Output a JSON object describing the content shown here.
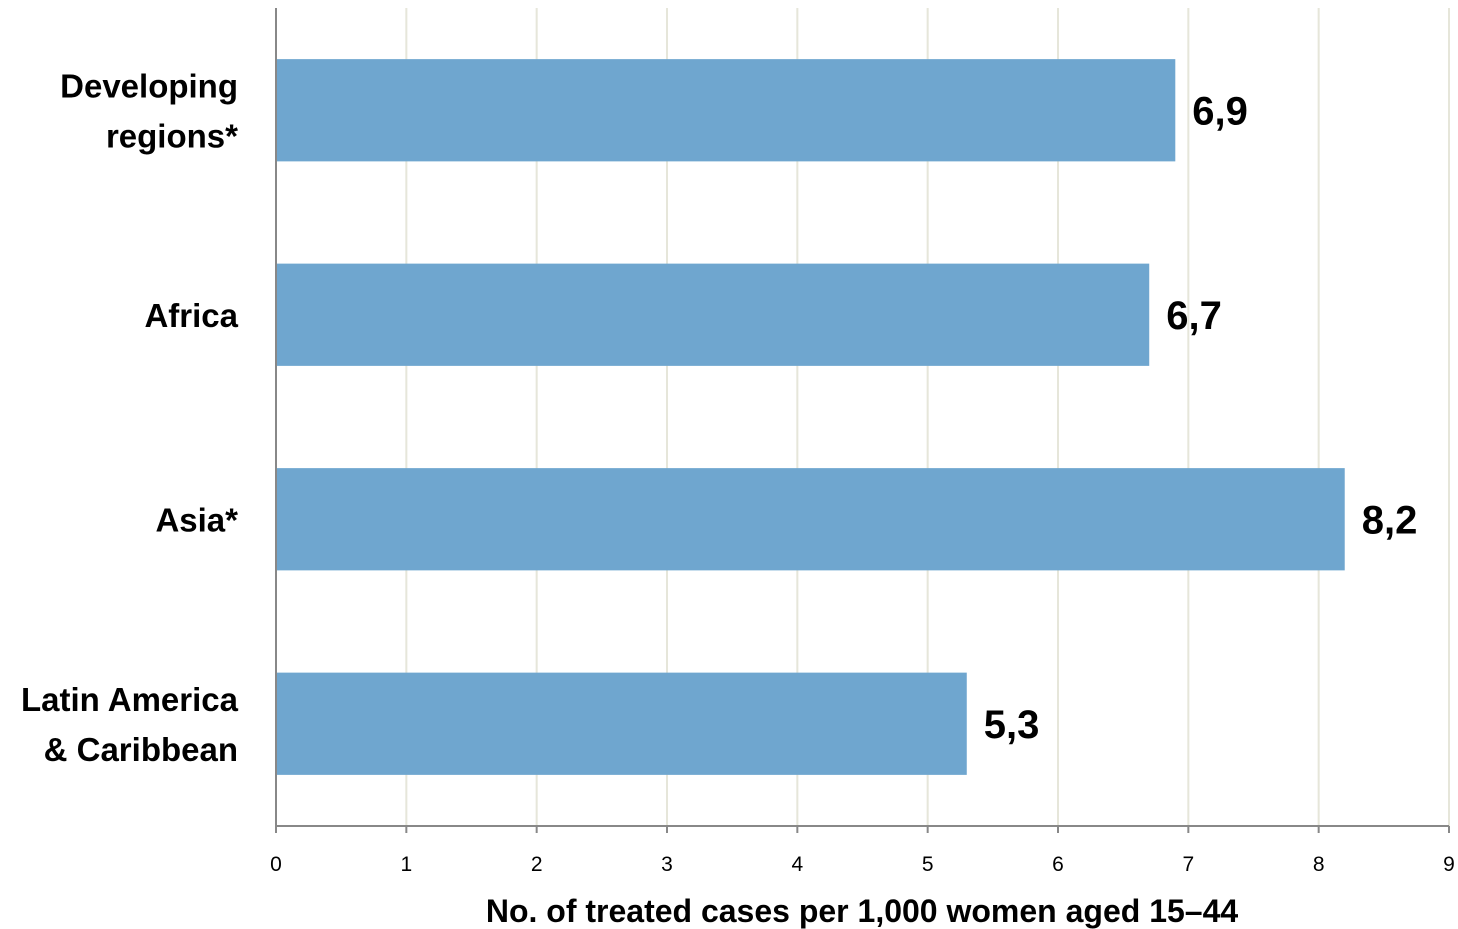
{
  "chart_data": {
    "type": "bar",
    "orientation": "horizontal",
    "categories": [
      [
        "Developing",
        "regions*"
      ],
      [
        "Africa"
      ],
      [
        "Asia*"
      ],
      [
        "Latin America",
        "& Caribbean"
      ]
    ],
    "values": [
      6.9,
      6.7,
      8.2,
      5.3
    ],
    "value_labels": [
      "6,9",
      "6,7",
      "8,2",
      "5,3"
    ],
    "xlabel": "No. of treated cases per 1,000 women aged 15–44",
    "xlim": [
      0,
      9
    ],
    "xticks": [
      "0",
      "1",
      "2",
      "3",
      "4",
      "5",
      "6",
      "7",
      "8",
      "9"
    ],
    "grid": "vertical",
    "legend": "none",
    "bar_color": "#6fa6cf",
    "grid_color": "#e6e6da",
    "axis_color": "#888888"
  }
}
